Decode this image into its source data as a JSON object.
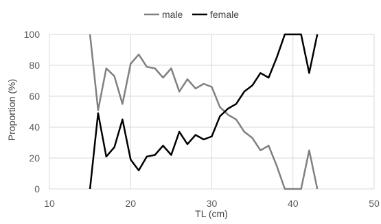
{
  "chart_data": {
    "type": "line",
    "title": "",
    "xlabel": "TL (cm)",
    "ylabel": "Proportion (%)",
    "xlim": [
      10,
      50
    ],
    "ylim": [
      0,
      100
    ],
    "xticks": [
      10,
      20,
      30,
      40,
      50
    ],
    "yticks": [
      0,
      20,
      40,
      60,
      80,
      100
    ],
    "grid": true,
    "legend_position": "top",
    "series": [
      {
        "name": "male",
        "color": "#808080",
        "x": [
          15,
          16,
          17,
          18,
          19,
          20,
          21,
          22,
          23,
          24,
          25,
          26,
          27,
          28,
          29,
          30,
          31,
          32,
          33,
          34,
          35,
          36,
          37,
          38,
          39,
          40,
          41,
          42,
          43
        ],
        "y": [
          100,
          51,
          78,
          73,
          55,
          81,
          87,
          79,
          78,
          72,
          78,
          63,
          71,
          65,
          68,
          66,
          53,
          48,
          45,
          37,
          33,
          25,
          28,
          15,
          0,
          0,
          0,
          25,
          0
        ]
      },
      {
        "name": "female",
        "color": "#000000",
        "x": [
          15,
          16,
          17,
          18,
          19,
          20,
          21,
          22,
          23,
          24,
          25,
          26,
          27,
          28,
          29,
          30,
          31,
          32,
          33,
          34,
          35,
          36,
          37,
          38,
          39,
          40,
          41,
          42,
          43
        ],
        "y": [
          0,
          49,
          21,
          27,
          45,
          19,
          12,
          21,
          22,
          28,
          22,
          37,
          29,
          35,
          32,
          34,
          47,
          52,
          55,
          63,
          67,
          75,
          72,
          85,
          100,
          100,
          100,
          75,
          100
        ]
      }
    ]
  }
}
